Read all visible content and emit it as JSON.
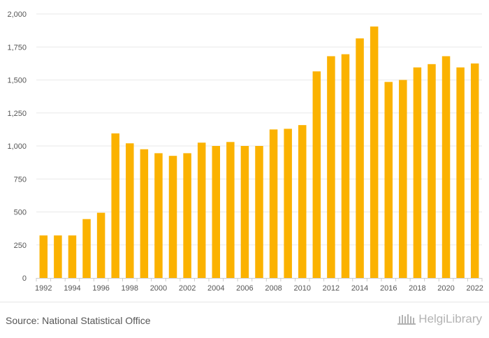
{
  "chart_data": {
    "type": "bar",
    "categories": [
      "1992",
      "1993",
      "1994",
      "1995",
      "1996",
      "1997",
      "1998",
      "1999",
      "2000",
      "2001",
      "2002",
      "2003",
      "2004",
      "2005",
      "2006",
      "2007",
      "2008",
      "2009",
      "2010",
      "2011",
      "2012",
      "2013",
      "2014",
      "2015",
      "2016",
      "2017",
      "2018",
      "2019",
      "2020",
      "2021",
      "2022"
    ],
    "values": [
      322,
      322,
      322,
      446,
      494,
      1095,
      1020,
      975,
      945,
      925,
      945,
      1025,
      1000,
      1030,
      1000,
      1000,
      1125,
      1130,
      1158,
      1565,
      1680,
      1695,
      1815,
      1905,
      1485,
      1500,
      1595,
      1620,
      1680,
      1595,
      1625
    ],
    "x_tick_labels": [
      "1992",
      "1994",
      "1996",
      "1998",
      "2000",
      "2002",
      "2004",
      "2006",
      "2008",
      "2010",
      "2012",
      "2014",
      "2016",
      "2018",
      "2020",
      "2022"
    ],
    "y_tick_labels": [
      "0",
      "250",
      "500",
      "750",
      "1,000",
      "1,250",
      "1,500",
      "1,750",
      "2,000"
    ],
    "ylim": [
      0,
      2000
    ],
    "y_step": 250,
    "grid": true,
    "bar_color": "#FBB200",
    "title": "",
    "xlabel": "",
    "ylabel": ""
  },
  "footer": {
    "source": "Source: National Statistical Office",
    "logo_text": "HelgiLibrary"
  }
}
